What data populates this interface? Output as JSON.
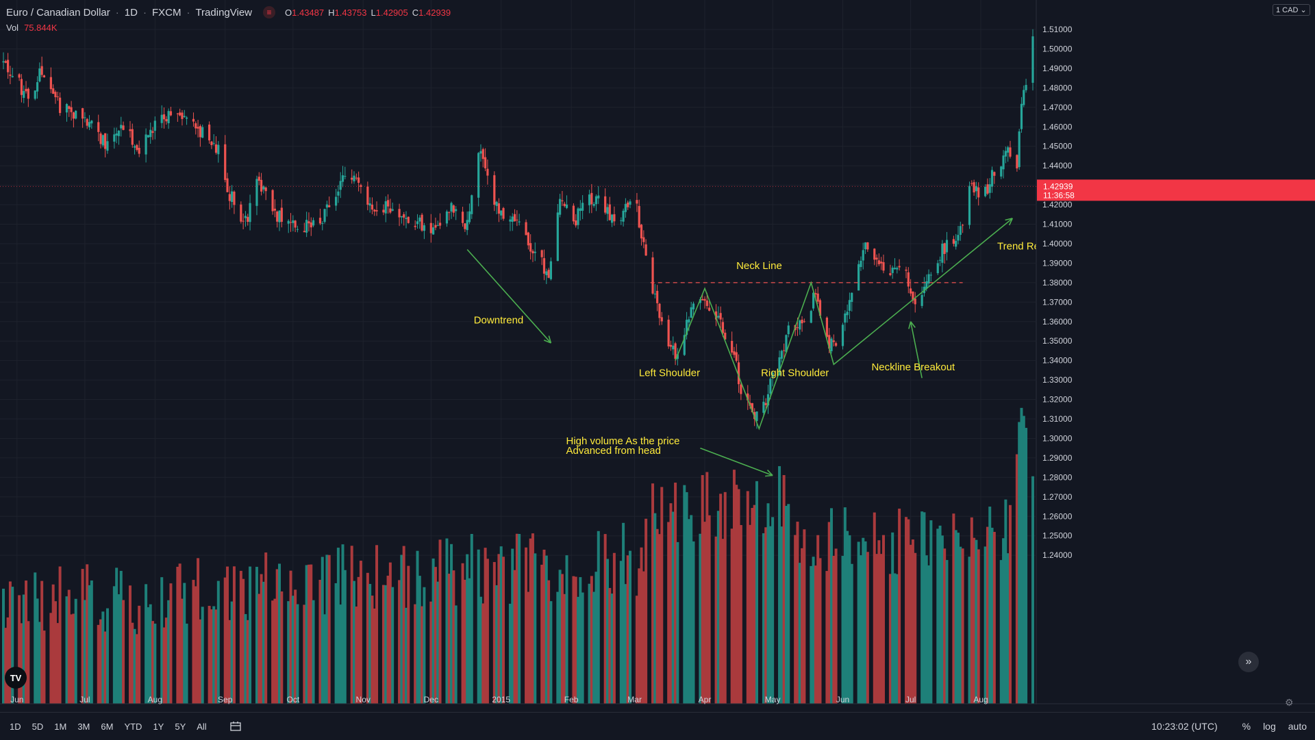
{
  "header": {
    "symbol": "Euro / Canadian Dollar",
    "interval": "1D",
    "exchange": "FXCM",
    "source": "TradingView",
    "open_label": "O",
    "open": "1.43487",
    "high_label": "H",
    "high": "1.43753",
    "low_label": "L",
    "low": "1.42905",
    "close_label": "C",
    "close": "1.42939",
    "vol_label": "Vol",
    "vol_value": "75.844K"
  },
  "price_scale": {
    "currency_button": "1 CAD",
    "current_price": "1.42939",
    "countdown": "11:36:58"
  },
  "time_ranges": [
    "1D",
    "5D",
    "1M",
    "3M",
    "6M",
    "YTD",
    "1Y",
    "5Y",
    "All"
  ],
  "footer": {
    "clock": "10:23:02 (UTC)",
    "percent": "%",
    "log": "log",
    "auto": "auto"
  },
  "colors": {
    "background": "#131722",
    "up": "#26a69a",
    "down": "#ef5350",
    "up_volume": "#1e8079",
    "down_volume": "#aa3a3d",
    "annotation_line": "#4caf50",
    "annotation_text": "#ffeb3b",
    "neckline": "#ef5350",
    "price_tag": "#f23645"
  },
  "icons": {
    "status": "no-entry-icon",
    "calendar": "calendar-range-icon",
    "goto": "double-chevron-right-icon",
    "settings": "gear-icon",
    "logo": "tradingview-logo-icon"
  },
  "chart_data": {
    "type": "candlestick",
    "title": "Euro / Canadian Dollar",
    "y_ticks": [
      1.51,
      1.5,
      1.49,
      1.48,
      1.47,
      1.46,
      1.45,
      1.44,
      1.43,
      1.42,
      1.41,
      1.4,
      1.39,
      1.38,
      1.37,
      1.36,
      1.35,
      1.34,
      1.33,
      1.32,
      1.31,
      1.3,
      1.29,
      1.28,
      1.27,
      1.26,
      1.25,
      1.24
    ],
    "ylim": [
      1.232,
      1.5205
    ],
    "x_labels": [
      "Jun",
      "Jul",
      "Aug",
      "Sep",
      "Oct",
      "Nov",
      "Dec",
      "2015",
      "Feb",
      "Mar",
      "Apr",
      "May",
      "Jun",
      "Jul",
      "Aug"
    ],
    "x_label_dates": [
      "2014-06-01",
      "2014-07-01",
      "2014-08-01",
      "2014-09-01",
      "2014-10-01",
      "2014-11-01",
      "2014-12-01",
      "2015-01-01",
      "2015-02-01",
      "2015-03-01",
      "2015-04-01",
      "2015-05-01",
      "2015-06-01",
      "2015-07-01",
      "2015-08-01"
    ],
    "date_range": [
      "2014-05-26",
      "2015-08-24"
    ],
    "price_path": [
      [
        "2014-05-26",
        1.493
      ],
      [
        "2014-06-06",
        1.475
      ],
      [
        "2014-06-12",
        1.49
      ],
      [
        "2014-06-20",
        1.471
      ],
      [
        "2014-07-01",
        1.464
      ],
      [
        "2014-07-11",
        1.451
      ],
      [
        "2014-07-18",
        1.462
      ],
      [
        "2014-07-25",
        1.449
      ],
      [
        "2014-08-01",
        1.462
      ],
      [
        "2014-08-08",
        1.468
      ],
      [
        "2014-08-15",
        1.461
      ],
      [
        "2014-08-22",
        1.457
      ],
      [
        "2014-08-29",
        1.447
      ],
      [
        "2014-09-03",
        1.425
      ],
      [
        "2014-09-10",
        1.411
      ],
      [
        "2014-09-16",
        1.434
      ],
      [
        "2014-09-22",
        1.414
      ],
      [
        "2014-10-01",
        1.411
      ],
      [
        "2014-10-09",
        1.408
      ],
      [
        "2014-10-20",
        1.422
      ],
      [
        "2014-10-25",
        1.442
      ],
      [
        "2014-11-03",
        1.418
      ],
      [
        "2014-11-10",
        1.42
      ],
      [
        "2014-11-20",
        1.415
      ],
      [
        "2014-11-26",
        1.411
      ],
      [
        "2014-12-01",
        1.405
      ],
      [
        "2014-12-10",
        1.42
      ],
      [
        "2014-12-17",
        1.41
      ],
      [
        "2014-12-22",
        1.45
      ],
      [
        "2014-12-29",
        1.42
      ],
      [
        "2015-01-08",
        1.41
      ],
      [
        "2015-01-14",
        1.396
      ],
      [
        "2015-01-22",
        1.385
      ],
      [
        "2015-01-27",
        1.426
      ],
      [
        "2015-02-03",
        1.413
      ],
      [
        "2015-02-09",
        1.425
      ],
      [
        "2015-02-14",
        1.42
      ],
      [
        "2015-02-22",
        1.411
      ],
      [
        "2015-02-28",
        1.428
      ],
      [
        "2015-03-05",
        1.4
      ],
      [
        "2015-03-10",
        1.371
      ],
      [
        "2015-03-14",
        1.355
      ],
      [
        "2015-03-19",
        1.343
      ],
      [
        "2015-03-27",
        1.368
      ],
      [
        "2015-03-31",
        1.373
      ],
      [
        "2015-04-08",
        1.359
      ],
      [
        "2015-04-14",
        1.343
      ],
      [
        "2015-04-18",
        1.32
      ],
      [
        "2015-04-23",
        1.31
      ],
      [
        "2015-04-27",
        1.316
      ],
      [
        "2015-05-03",
        1.341
      ],
      [
        "2015-05-10",
        1.36
      ],
      [
        "2015-05-16",
        1.357
      ],
      [
        "2015-05-20",
        1.377
      ],
      [
        "2015-05-24",
        1.352
      ],
      [
        "2015-05-29",
        1.346
      ],
      [
        "2015-06-04",
        1.368
      ],
      [
        "2015-06-10",
        1.4
      ],
      [
        "2015-06-15",
        1.393
      ],
      [
        "2015-06-22",
        1.383
      ],
      [
        "2015-06-28",
        1.388
      ],
      [
        "2015-07-03",
        1.366
      ],
      [
        "2015-07-07",
        1.377
      ],
      [
        "2015-07-12",
        1.39
      ],
      [
        "2015-07-17",
        1.4
      ],
      [
        "2015-07-24",
        1.408
      ],
      [
        "2015-07-28",
        1.433
      ],
      [
        "2015-08-01",
        1.42
      ],
      [
        "2015-08-07",
        1.438
      ],
      [
        "2015-08-13",
        1.448
      ],
      [
        "2015-08-17",
        1.44
      ],
      [
        "2015-08-19",
        1.47
      ],
      [
        "2015-08-24",
        1.508
      ]
    ],
    "volume_range_k": [
      20,
      108
    ],
    "annotations": {
      "downtrend": "Downtrend",
      "left_shoulder": "Left Shoulder",
      "right_shoulder": "Right Shoulder",
      "neck_line": "Neck Line",
      "neckline_breakout": "Neckline Breakout",
      "trend_reversal": "Trend Rev",
      "volume_note_1": "High volume As the price",
      "volume_note_2": "Advanced from head"
    },
    "neckline_price": 1.38,
    "pattern_points": [
      [
        "2015-03-19",
        1.34
      ],
      [
        "2015-04-01",
        1.377
      ],
      [
        "2015-04-25",
        1.305
      ],
      [
        "2015-05-18",
        1.38
      ],
      [
        "2015-05-28",
        1.338
      ],
      [
        "2015-08-15",
        1.413
      ]
    ],
    "downtrend_arrow": [
      [
        "2014-12-17",
        1.397
      ],
      [
        "2015-01-23",
        1.349
      ]
    ],
    "breakout_arrow": [
      [
        "2015-07-06",
        1.331
      ],
      [
        "2015-07-01",
        1.36
      ]
    ],
    "volume_arrow": [
      [
        "2015-03-30",
        1.295
      ],
      [
        "2015-05-01",
        1.281
      ]
    ]
  }
}
